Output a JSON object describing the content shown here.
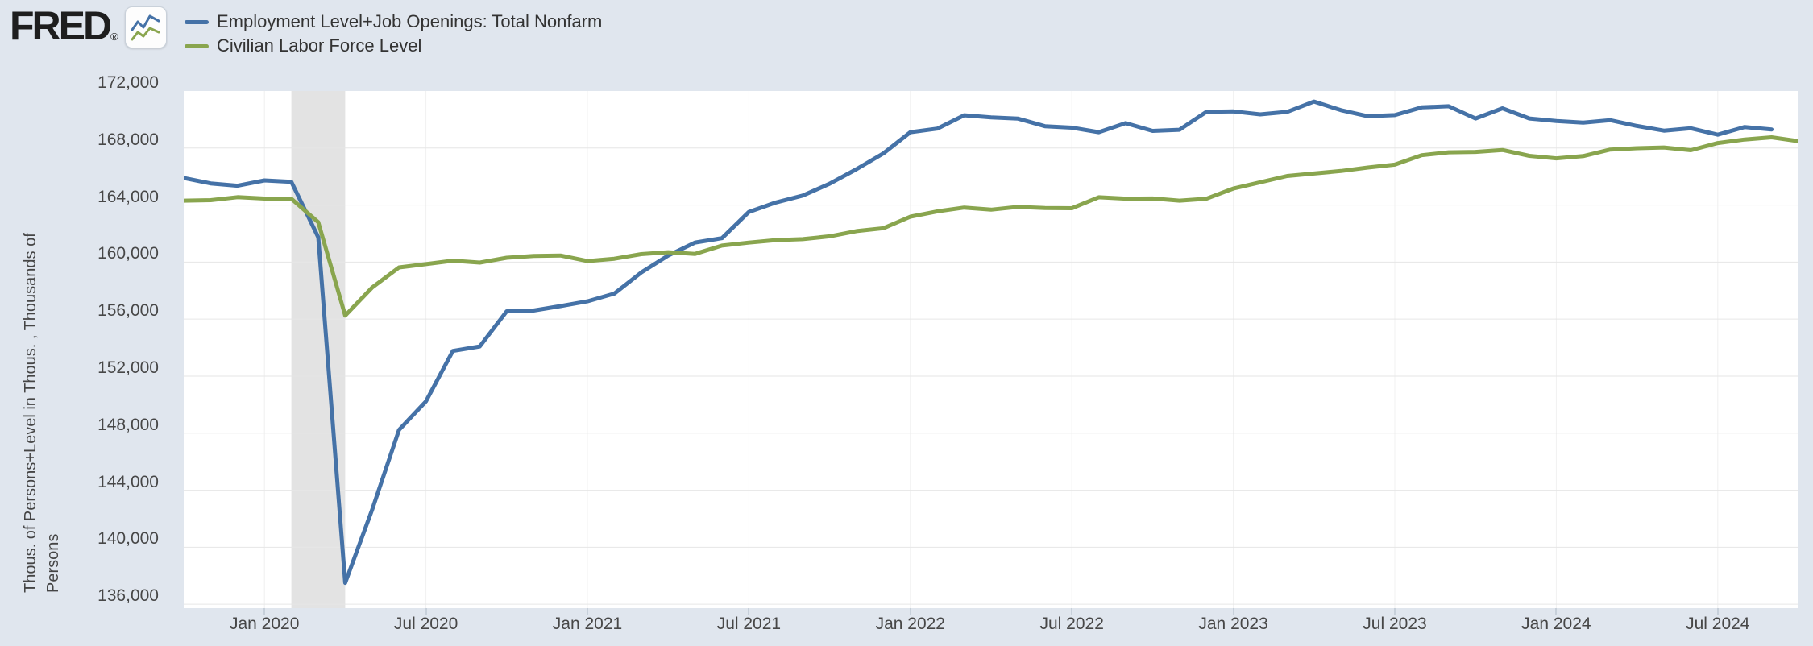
{
  "page": {
    "background": "#e0e6ee",
    "plot_background": "#ffffff",
    "gridline_color": "#e6e6e6",
    "vertical_gridline_color": "#f0f0f0",
    "tick_color": "#c7d0da",
    "axis_text_color": "#474747"
  },
  "logo": {
    "text": "FRED",
    "registered": "®",
    "icon": "fred-sparkline-icon"
  },
  "legend": {
    "items": [
      {
        "label": "Employment Level+Job Openings: Total Nonfarm",
        "color": "#4572a7"
      },
      {
        "label": "Civilian Labor Force Level",
        "color": "#89a54e"
      }
    ]
  },
  "y_axis": {
    "title_line1": "Thous. of Persons+Level in Thous. , Thousands of",
    "title_line2": "Persons",
    "ticks": [
      {
        "value": 172000,
        "label": "172,000"
      },
      {
        "value": 168000,
        "label": "168,000"
      },
      {
        "value": 164000,
        "label": "164,000"
      },
      {
        "value": 160000,
        "label": "160,000"
      },
      {
        "value": 156000,
        "label": "156,000"
      },
      {
        "value": 152000,
        "label": "152,000"
      },
      {
        "value": 148000,
        "label": "148,000"
      },
      {
        "value": 144000,
        "label": "144,000"
      },
      {
        "value": 140000,
        "label": "140,000"
      },
      {
        "value": 136000,
        "label": "136,000"
      }
    ]
  },
  "x_axis": {
    "ticks": [
      {
        "month_index": 3,
        "label": "Jan 2020"
      },
      {
        "month_index": 9,
        "label": "Jul 2020"
      },
      {
        "month_index": 15,
        "label": "Jan 2021"
      },
      {
        "month_index": 21,
        "label": "Jul 2021"
      },
      {
        "month_index": 27,
        "label": "Jan 2022"
      },
      {
        "month_index": 33,
        "label": "Jul 2022"
      },
      {
        "month_index": 39,
        "label": "Jan 2023"
      },
      {
        "month_index": 45,
        "label": "Jul 2023"
      },
      {
        "month_index": 51,
        "label": "Jan 2024"
      },
      {
        "month_index": 57,
        "label": "Jul 2024"
      }
    ]
  },
  "chart_data": {
    "type": "line",
    "title": "",
    "xlabel": "",
    "ylabel": "Thous. of Persons+Level in Thous. , Thousands of Persons",
    "ylim": [
      135727,
      172000
    ],
    "grid": "horizontal",
    "legend_position": "top-left",
    "x": [
      "2019-10",
      "2019-11",
      "2019-12",
      "2020-01",
      "2020-02",
      "2020-03",
      "2020-04",
      "2020-05",
      "2020-06",
      "2020-07",
      "2020-08",
      "2020-09",
      "2020-10",
      "2020-11",
      "2020-12",
      "2021-01",
      "2021-02",
      "2021-03",
      "2021-04",
      "2021-05",
      "2021-06",
      "2021-07",
      "2021-08",
      "2021-09",
      "2021-10",
      "2021-11",
      "2021-12",
      "2022-01",
      "2022-02",
      "2022-03",
      "2022-04",
      "2022-05",
      "2022-06",
      "2022-07",
      "2022-08",
      "2022-09",
      "2022-10",
      "2022-11",
      "2022-12",
      "2023-01",
      "2023-02",
      "2023-03",
      "2023-04",
      "2023-05",
      "2023-06",
      "2023-07",
      "2023-08",
      "2023-09",
      "2023-10",
      "2023-11",
      "2023-12",
      "2024-01",
      "2024-02",
      "2024-03",
      "2024-04",
      "2024-05",
      "2024-06",
      "2024-07",
      "2024-08",
      "2024-09",
      "2024-10"
    ],
    "recession_band": {
      "start_month_index": 4,
      "end_month_index": 6,
      "color": "#e3e3e3"
    },
    "series": [
      {
        "name": "Employment Level+Job Openings: Total Nonfarm",
        "color": "#4572a7",
        "values": [
          165905,
          165521,
          165355,
          165726,
          165629,
          161738,
          137500,
          142624,
          148232,
          150229,
          153766,
          154086,
          156546,
          156606,
          156912,
          157250,
          157793,
          159268,
          160461,
          161371,
          161676,
          163520,
          164178,
          164669,
          165496,
          166518,
          167625,
          169115,
          169364,
          170297,
          170155,
          170061,
          169530,
          169430,
          169115,
          169743,
          169205,
          169281,
          170542,
          170568,
          170364,
          170539,
          171260,
          170655,
          170230,
          170311,
          170853,
          170934,
          170074,
          170787,
          170072,
          169900,
          169781,
          169954,
          169550,
          169223,
          169383,
          168939,
          169474,
          169307
        ]
      },
      {
        "name": "Civilian Labor Force Level",
        "color": "#89a54e",
        "values": [
          164313,
          164347,
          164556,
          164455,
          164448,
          162796,
          156248,
          158212,
          159629,
          159860,
          160099,
          159965,
          160307,
          160434,
          160463,
          160073,
          160238,
          160558,
          160696,
          160576,
          161158,
          161368,
          161543,
          161609,
          161810,
          162177,
          162378,
          163184,
          163560,
          163826,
          163676,
          163877,
          163790,
          163777,
          164548,
          164453,
          164461,
          164312,
          164447,
          165158,
          165600,
          166039,
          166214,
          166390,
          166635,
          166834,
          167497,
          167702,
          167729,
          167867,
          167451,
          167276,
          167433,
          167895,
          167987,
          168042,
          167850,
          168350,
          168600,
          168750,
          168480
        ]
      }
    ]
  }
}
